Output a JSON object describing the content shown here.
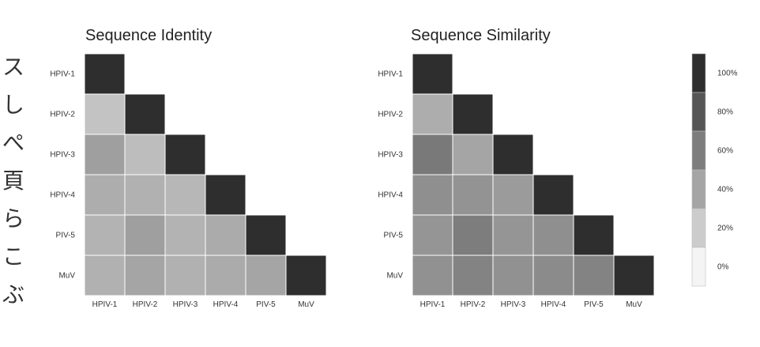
{
  "side_text": [
    "ス",
    "し",
    "ぺ",
    "頁",
    "ら",
    "こ",
    "ぶ"
  ],
  "chart_data": [
    {
      "type": "heatmap",
      "title": "Sequence Identity",
      "labels": [
        "HPIV-1",
        "HPIV-2",
        "HPIV-3",
        "HPIV-4",
        "PIV-5",
        "MuV"
      ],
      "values": [
        [
          100,
          null,
          null,
          null,
          null,
          null
        ],
        [
          25,
          100,
          null,
          null,
          null,
          null
        ],
        [
          43,
          28,
          100,
          null,
          null,
          null
        ],
        [
          36,
          34,
          31,
          100,
          null,
          null
        ],
        [
          33,
          43,
          33,
          37,
          100,
          null
        ],
        [
          34,
          40,
          34,
          37,
          40,
          100
        ]
      ]
    },
    {
      "type": "heatmap",
      "title": "Sequence Similarity",
      "labels": [
        "HPIV-1",
        "HPIV-2",
        "HPIV-3",
        "HPIV-4",
        "PIV-5",
        "MuV"
      ],
      "values": [
        [
          100,
          null,
          null,
          null,
          null,
          null
        ],
        [
          36,
          100,
          null,
          null,
          null,
          null
        ],
        [
          62,
          40,
          100,
          null,
          null,
          null
        ],
        [
          51,
          49,
          45,
          100,
          null,
          null
        ],
        [
          48,
          60,
          48,
          51,
          100,
          null
        ],
        [
          50,
          57,
          50,
          53,
          57,
          100
        ]
      ]
    }
  ],
  "legend": {
    "labels": [
      "100%",
      "80%",
      "60%",
      "40%",
      "20%",
      "0%"
    ],
    "values": [
      100,
      80,
      60,
      40,
      20,
      0
    ]
  },
  "colors": {
    "low": "#f4f4f4",
    "high": "#2e2e2e",
    "grid": "#ffffff"
  }
}
